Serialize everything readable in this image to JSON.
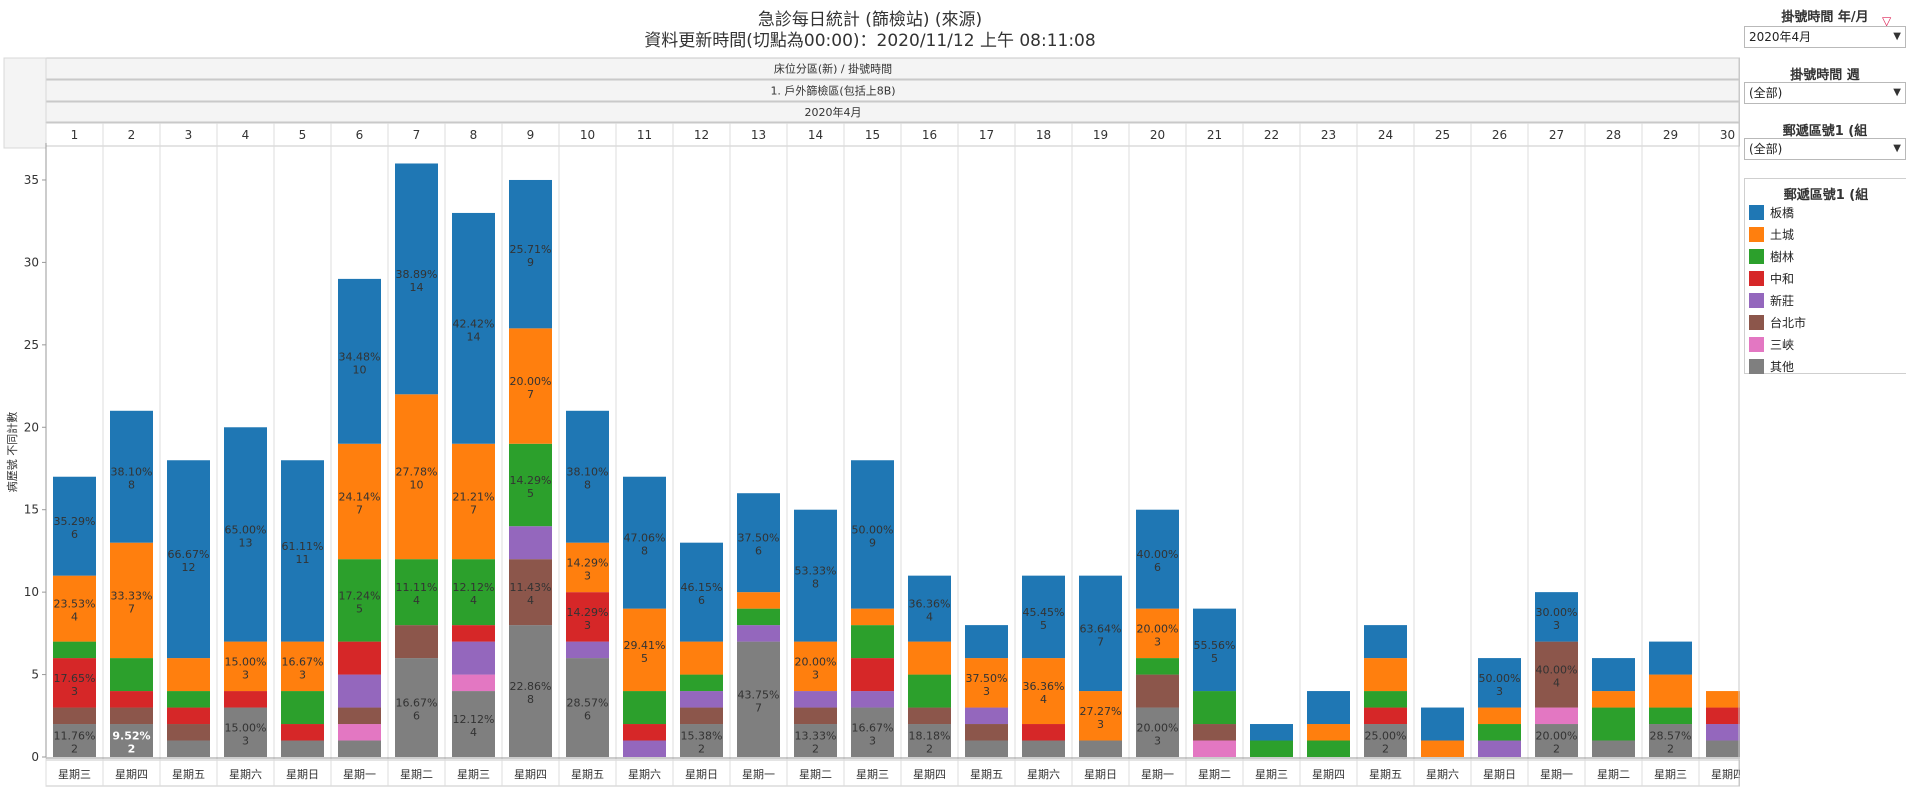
{
  "title_lines": [
    "急診每日統計 (篩檢站) (來源)",
    "資料更新時間(切點為00:00)：2020/11/12 上午 08:11:08"
  ],
  "right_panel": {
    "filter1": {
      "title": "掛號時間 年/月",
      "value": "2020年4月"
    },
    "filter2": {
      "title": "掛號時間 週",
      "value": "(全部)"
    },
    "filter3": {
      "title": "郵遞區號1 (組",
      "value": "(全部)"
    },
    "legend_title": "郵遞區號1 (組"
  },
  "chart_data": {
    "type": "bar",
    "stacked": true,
    "header_rows": [
      "床位分區(新) / 掛號時間",
      "1. 戶外篩檢區(包括上8B)",
      "2020年4月"
    ],
    "ylabel": "病歷號 不同計數",
    "ylim": [
      0,
      37
    ],
    "yticks": [
      0,
      5,
      10,
      15,
      20,
      25,
      30,
      35
    ],
    "grid": false,
    "legend_position": "right",
    "series_names": [
      "板橋",
      "土城",
      "樹林",
      "中和",
      "新莊",
      "台北市",
      "三峽",
      "其他"
    ],
    "colors": {
      "板橋": "#1f77b4",
      "土城": "#ff7f0e",
      "樹林": "#2ca02c",
      "中和": "#d62728",
      "新莊": "#9467bd",
      "台北市": "#8c564b",
      "三峽": "#e377c2",
      "其他": "#7f7f7f"
    },
    "days": [
      {
        "day": "1",
        "weekday": "星期三",
        "segments": [
          {
            "name": "其他",
            "value": 2,
            "label": "11.76%\n2"
          },
          {
            "name": "台北市",
            "value": 1
          },
          {
            "name": "中和",
            "value": 3,
            "label": "17.65%\n3"
          },
          {
            "name": "樹林",
            "value": 1
          },
          {
            "name": "土城",
            "value": 4,
            "label": "23.53%\n4"
          },
          {
            "name": "板橋",
            "value": 6,
            "label": "35.29%\n6"
          }
        ]
      },
      {
        "day": "2",
        "weekday": "星期四",
        "segments": [
          {
            "name": "其他",
            "value": 2,
            "label": "9.52%\n2",
            "label_color": "#ffffff",
            "label_bold": true
          },
          {
            "name": "台北市",
            "value": 1
          },
          {
            "name": "中和",
            "value": 1
          },
          {
            "name": "樹林",
            "value": 2
          },
          {
            "name": "土城",
            "value": 7,
            "label": "33.33%\n7"
          },
          {
            "name": "板橋",
            "value": 8,
            "label": "38.10%\n8"
          }
        ]
      },
      {
        "day": "3",
        "weekday": "星期五",
        "segments": [
          {
            "name": "其他",
            "value": 1
          },
          {
            "name": "台北市",
            "value": 1
          },
          {
            "name": "中和",
            "value": 1
          },
          {
            "name": "樹林",
            "value": 1
          },
          {
            "name": "土城",
            "value": 2
          },
          {
            "name": "板橋",
            "value": 12,
            "label": "66.67%\n12"
          }
        ]
      },
      {
        "day": "4",
        "weekday": "星期六",
        "segments": [
          {
            "name": "其他",
            "value": 3,
            "label": "15.00%\n3"
          },
          {
            "name": "中和",
            "value": 1
          },
          {
            "name": "土城",
            "value": 3,
            "label": "15.00%\n3"
          },
          {
            "name": "板橋",
            "value": 13,
            "label": "65.00%\n13"
          }
        ]
      },
      {
        "day": "5",
        "weekday": "星期日",
        "segments": [
          {
            "name": "其他",
            "value": 1
          },
          {
            "name": "中和",
            "value": 1
          },
          {
            "name": "樹林",
            "value": 2
          },
          {
            "name": "土城",
            "value": 3,
            "label": "16.67%\n3"
          },
          {
            "name": "板橋",
            "value": 11,
            "label": "61.11%\n11"
          }
        ]
      },
      {
        "day": "6",
        "weekday": "星期一",
        "segments": [
          {
            "name": "其他",
            "value": 1
          },
          {
            "name": "三峽",
            "value": 1
          },
          {
            "name": "台北市",
            "value": 1
          },
          {
            "name": "新莊",
            "value": 2
          },
          {
            "name": "中和",
            "value": 2
          },
          {
            "name": "樹林",
            "value": 5,
            "label": "17.24%\n5"
          },
          {
            "name": "土城",
            "value": 7,
            "label": "24.14%\n7"
          },
          {
            "name": "板橋",
            "value": 10,
            "label": "34.48%\n10"
          }
        ]
      },
      {
        "day": "7",
        "weekday": "星期二",
        "segments": [
          {
            "name": "其他",
            "value": 6,
            "label": "16.67%\n6"
          },
          {
            "name": "台北市",
            "value": 2
          },
          {
            "name": "樹林",
            "value": 4,
            "label": "11.11%\n4"
          },
          {
            "name": "土城",
            "value": 10,
            "label": "27.78%\n10"
          },
          {
            "name": "板橋",
            "value": 14,
            "label": "38.89%\n14"
          }
        ]
      },
      {
        "day": "8",
        "weekday": "星期三",
        "segments": [
          {
            "name": "其他",
            "value": 4,
            "label": "12.12%\n4"
          },
          {
            "name": "三峽",
            "value": 1
          },
          {
            "name": "新莊",
            "value": 2
          },
          {
            "name": "中和",
            "value": 1
          },
          {
            "name": "樹林",
            "value": 4,
            "label": "12.12%\n4"
          },
          {
            "name": "土城",
            "value": 7,
            "label": "21.21%\n7"
          },
          {
            "name": "板橋",
            "value": 14,
            "label": "42.42%\n14"
          }
        ]
      },
      {
        "day": "9",
        "weekday": "星期四",
        "segments": [
          {
            "name": "其他",
            "value": 8,
            "label": "22.86%\n8"
          },
          {
            "name": "台北市",
            "value": 4,
            "label": "11.43%\n4"
          },
          {
            "name": "新莊",
            "value": 2
          },
          {
            "name": "樹林",
            "value": 5,
            "label": "14.29%\n5"
          },
          {
            "name": "土城",
            "value": 7,
            "label": "20.00%\n7"
          },
          {
            "name": "板橋",
            "value": 9,
            "label": "25.71%\n9"
          }
        ]
      },
      {
        "day": "10",
        "weekday": "星期五",
        "segments": [
          {
            "name": "其他",
            "value": 6,
            "label": "28.57%\n6"
          },
          {
            "name": "新莊",
            "value": 1
          },
          {
            "name": "中和",
            "value": 3,
            "label": "14.29%\n3"
          },
          {
            "name": "土城",
            "value": 3,
            "label": "14.29%\n3"
          },
          {
            "name": "板橋",
            "value": 8,
            "label": "38.10%\n8"
          }
        ]
      },
      {
        "day": "11",
        "weekday": "星期六",
        "segments": [
          {
            "name": "新莊",
            "value": 1
          },
          {
            "name": "中和",
            "value": 1
          },
          {
            "name": "樹林",
            "value": 2
          },
          {
            "name": "土城",
            "value": 5,
            "label": "29.41%\n5"
          },
          {
            "name": "板橋",
            "value": 8,
            "label": "47.06%\n8"
          }
        ]
      },
      {
        "day": "12",
        "weekday": "星期日",
        "segments": [
          {
            "name": "其他",
            "value": 2,
            "label": "15.38%\n2"
          },
          {
            "name": "台北市",
            "value": 1
          },
          {
            "name": "新莊",
            "value": 1
          },
          {
            "name": "樹林",
            "value": 1
          },
          {
            "name": "土城",
            "value": 2
          },
          {
            "name": "板橋",
            "value": 6,
            "label": "46.15%\n6"
          }
        ]
      },
      {
        "day": "13",
        "weekday": "星期一",
        "segments": [
          {
            "name": "其他",
            "value": 7,
            "label": "43.75%\n7"
          },
          {
            "name": "新莊",
            "value": 1
          },
          {
            "name": "樹林",
            "value": 1
          },
          {
            "name": "土城",
            "value": 1
          },
          {
            "name": "板橋",
            "value": 6,
            "label": "37.50%\n6"
          }
        ]
      },
      {
        "day": "14",
        "weekday": "星期二",
        "segments": [
          {
            "name": "其他",
            "value": 2,
            "label": "13.33%\n2"
          },
          {
            "name": "台北市",
            "value": 1
          },
          {
            "name": "新莊",
            "value": 1
          },
          {
            "name": "土城",
            "value": 3,
            "label": "20.00%\n3"
          },
          {
            "name": "板橋",
            "value": 8,
            "label": "53.33%\n8"
          }
        ]
      },
      {
        "day": "15",
        "weekday": "星期三",
        "segments": [
          {
            "name": "其他",
            "value": 3,
            "label": "16.67%\n3"
          },
          {
            "name": "新莊",
            "value": 1
          },
          {
            "name": "中和",
            "value": 2
          },
          {
            "name": "樹林",
            "value": 2
          },
          {
            "name": "土城",
            "value": 1
          },
          {
            "name": "板橋",
            "value": 9,
            "label": "50.00%\n9"
          }
        ]
      },
      {
        "day": "16",
        "weekday": "星期四",
        "segments": [
          {
            "name": "其他",
            "value": 2,
            "label": "18.18%\n2"
          },
          {
            "name": "台北市",
            "value": 1
          },
          {
            "name": "樹林",
            "value": 2
          },
          {
            "name": "土城",
            "value": 2
          },
          {
            "name": "板橋",
            "value": 4,
            "label": "36.36%\n4"
          }
        ]
      },
      {
        "day": "17",
        "weekday": "星期五",
        "segments": [
          {
            "name": "其他",
            "value": 1
          },
          {
            "name": "台北市",
            "value": 1
          },
          {
            "name": "新莊",
            "value": 1
          },
          {
            "name": "土城",
            "value": 3,
            "label": "37.50%\n3"
          },
          {
            "name": "板橋",
            "value": 2
          }
        ]
      },
      {
        "day": "18",
        "weekday": "星期六",
        "segments": [
          {
            "name": "其他",
            "value": 1
          },
          {
            "name": "中和",
            "value": 1
          },
          {
            "name": "土城",
            "value": 4,
            "label": "36.36%\n4"
          },
          {
            "name": "板橋",
            "value": 5,
            "label": "45.45%\n5"
          }
        ]
      },
      {
        "day": "19",
        "weekday": "星期日",
        "segments": [
          {
            "name": "其他",
            "value": 1
          },
          {
            "name": "土城",
            "value": 3,
            "label": "27.27%\n3"
          },
          {
            "name": "板橋",
            "value": 7,
            "label": "63.64%\n7"
          }
        ]
      },
      {
        "day": "20",
        "weekday": "星期一",
        "segments": [
          {
            "name": "其他",
            "value": 3,
            "label": "20.00%\n3"
          },
          {
            "name": "台北市",
            "value": 2
          },
          {
            "name": "樹林",
            "value": 1
          },
          {
            "name": "土城",
            "value": 3,
            "label": "20.00%\n3"
          },
          {
            "name": "板橋",
            "value": 6,
            "label": "40.00%\n6"
          }
        ]
      },
      {
        "day": "21",
        "weekday": "星期二",
        "segments": [
          {
            "name": "三峽",
            "value": 1
          },
          {
            "name": "台北市",
            "value": 1
          },
          {
            "name": "樹林",
            "value": 2
          },
          {
            "name": "板橋",
            "value": 5,
            "label": "55.56%\n5"
          }
        ]
      },
      {
        "day": "22",
        "weekday": "星期三",
        "segments": [
          {
            "name": "樹林",
            "value": 1
          },
          {
            "name": "板橋",
            "value": 1
          }
        ]
      },
      {
        "day": "23",
        "weekday": "星期四",
        "segments": [
          {
            "name": "樹林",
            "value": 1
          },
          {
            "name": "土城",
            "value": 1
          },
          {
            "name": "板橋",
            "value": 2
          }
        ]
      },
      {
        "day": "24",
        "weekday": "星期五",
        "segments": [
          {
            "name": "其他",
            "value": 2,
            "label": "25.00%\n2"
          },
          {
            "name": "中和",
            "value": 1
          },
          {
            "name": "樹林",
            "value": 1
          },
          {
            "name": "土城",
            "value": 2
          },
          {
            "name": "板橋",
            "value": 2
          }
        ]
      },
      {
        "day": "25",
        "weekday": "星期六",
        "segments": [
          {
            "name": "土城",
            "value": 1
          },
          {
            "name": "板橋",
            "value": 2
          }
        ]
      },
      {
        "day": "26",
        "weekday": "星期日",
        "segments": [
          {
            "name": "新莊",
            "value": 1
          },
          {
            "name": "樹林",
            "value": 1
          },
          {
            "name": "土城",
            "value": 1
          },
          {
            "name": "板橋",
            "value": 3,
            "label": "50.00%\n3"
          }
        ]
      },
      {
        "day": "27",
        "weekday": "星期一",
        "segments": [
          {
            "name": "其他",
            "value": 2,
            "label": "20.00%\n2"
          },
          {
            "name": "三峽",
            "value": 1
          },
          {
            "name": "台北市",
            "value": 4,
            "label": "40.00%\n4"
          },
          {
            "name": "板橋",
            "value": 3,
            "label": "30.00%\n3"
          }
        ]
      },
      {
        "day": "28",
        "weekday": "星期二",
        "segments": [
          {
            "name": "其他",
            "value": 1
          },
          {
            "name": "樹林",
            "value": 2
          },
          {
            "name": "土城",
            "value": 1
          },
          {
            "name": "板橋",
            "value": 2
          }
        ]
      },
      {
        "day": "29",
        "weekday": "星期三",
        "segments": [
          {
            "name": "其他",
            "value": 2,
            "label": "28.57%\n2"
          },
          {
            "name": "樹林",
            "value": 1
          },
          {
            "name": "土城",
            "value": 2
          },
          {
            "name": "板橋",
            "value": 2
          }
        ]
      },
      {
        "day": "30",
        "weekday": "星期四",
        "segments": [
          {
            "name": "其他",
            "value": 1
          },
          {
            "name": "新莊",
            "value": 1
          },
          {
            "name": "中和",
            "value": 1
          },
          {
            "name": "土城",
            "value": 1
          }
        ]
      }
    ]
  }
}
